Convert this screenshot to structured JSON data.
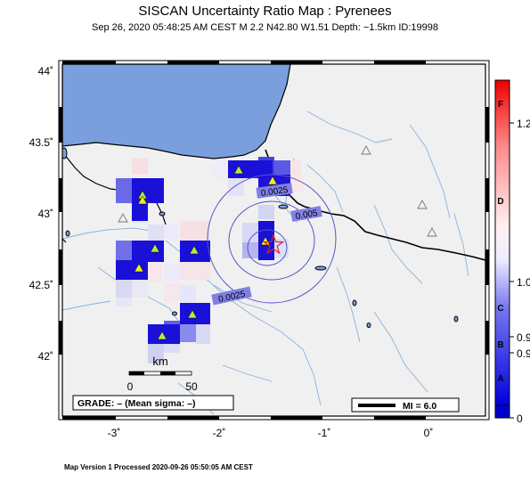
{
  "header": {
    "title": "SISCAN Uncertainty Ratio Map : Pyrenees",
    "subtitle": "Sep 26, 2020 05:48:25 AM CEST    M 2.2    N42.80 W1.51    Depth: −1.5km    ID:19998"
  },
  "footer": {
    "text": "Map Version 1 Processed 2020-09-26 05:50:05 AM CEST"
  },
  "axes": {
    "x_ticks": [
      "-3˚",
      "-2˚",
      "-1˚",
      "0˚"
    ],
    "y_ticks": [
      "44˚",
      "43.5˚",
      "43˚",
      "42.5˚",
      "42˚"
    ]
  },
  "contours": [
    "0.0025",
    "0.005",
    "0.0025"
  ],
  "scale_bar": {
    "unit": "km",
    "labels": [
      "0",
      "50"
    ]
  },
  "grade_box": {
    "text": "GRADE: – (Mean sigma: –)"
  },
  "mi_box": {
    "text": "MI = 6.0"
  },
  "colorbar": {
    "letters": [
      "F",
      "D",
      "C",
      "B",
      "A"
    ],
    "values": [
      "1.2",
      "1.0",
      "0.9",
      "0.9",
      "0"
    ]
  },
  "colors": {
    "sea": "#7a9fdc",
    "land": "#f0f0f0",
    "strong_blue": "#1a10d8",
    "epicenter": "#e0202a",
    "station": "#aaee44",
    "contour": "#5555cc"
  }
}
